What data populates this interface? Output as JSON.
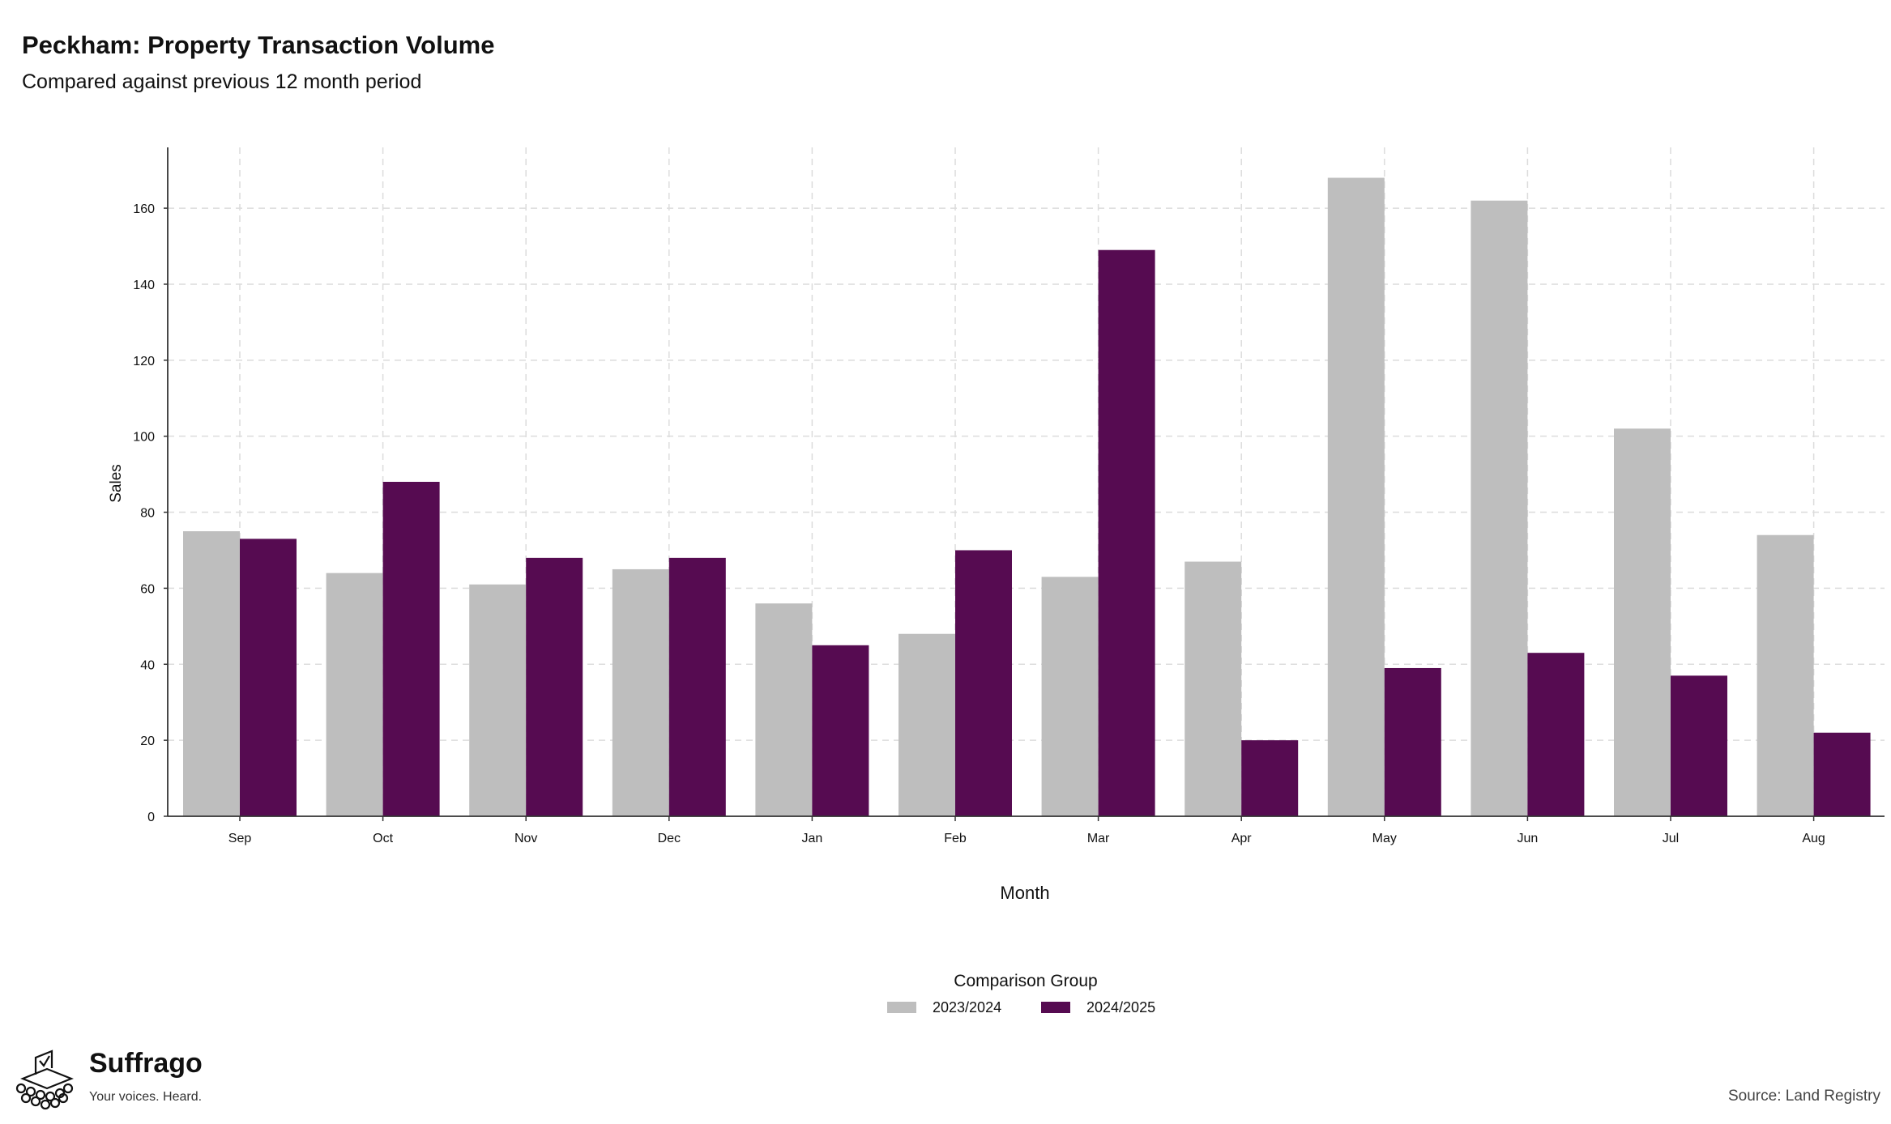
{
  "chart_data": {
    "type": "bar",
    "title": "Peckham: Property Transaction Volume",
    "subtitle": "Compared against previous 12 month period",
    "xlabel": "Month",
    "ylabel": "Sales",
    "categories": [
      "Sep",
      "Oct",
      "Nov",
      "Dec",
      "Jan",
      "Feb",
      "Mar",
      "Apr",
      "May",
      "Jun",
      "Jul",
      "Aug"
    ],
    "series": [
      {
        "name": "2023/2024",
        "color": "#bebebe",
        "values": [
          75,
          64,
          61,
          65,
          56,
          48,
          63,
          67,
          168,
          162,
          102,
          74
        ]
      },
      {
        "name": "2024/2025",
        "color": "#560b51",
        "values": [
          73,
          88,
          68,
          68,
          45,
          70,
          149,
          20,
          39,
          43,
          37,
          22
        ]
      }
    ],
    "ylim": [
      0,
      176
    ],
    "yticks": [
      0,
      20,
      40,
      60,
      80,
      100,
      120,
      140,
      160
    ],
    "grid": true,
    "legend_title": "Comparison Group",
    "legend_position": "bottom"
  },
  "branding": {
    "name": "Suffrago",
    "tagline": "Your voices. Heard.",
    "icon": "ballot-box-icon"
  },
  "source": "Source: Land Registry"
}
